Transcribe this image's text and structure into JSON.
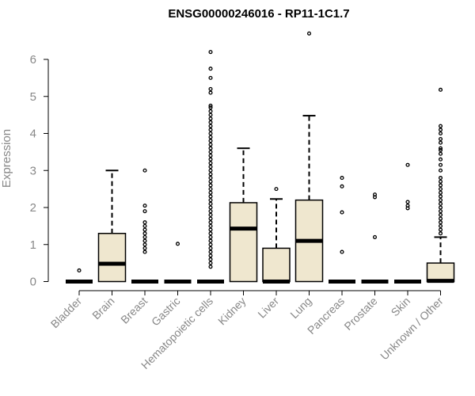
{
  "chart_data": {
    "type": "box",
    "title": "ENSG00000246016 - RP11-1C1.7",
    "xlabel": "",
    "ylabel": "Expression",
    "ylim": [
      0,
      6.5
    ],
    "yticks": [
      0,
      1,
      2,
      3,
      4,
      5,
      6
    ],
    "grid": false,
    "colors": {
      "box_fill": "#efe7cf",
      "stroke": "#000000",
      "axis_text": "#888888"
    },
    "categories": [
      "Bladder",
      "Brain",
      "Breast",
      "Gastric",
      "Hematopoietic cells",
      "Kidney",
      "Liver",
      "Lung",
      "Pancreas",
      "Prostate",
      "Skin",
      "Unknown / Other"
    ],
    "boxes": [
      {
        "name": "Bladder",
        "q1": 0,
        "median": 0,
        "q3": 0,
        "whisker_low": 0,
        "whisker_high": 0,
        "outliers": [
          0.3
        ]
      },
      {
        "name": "Brain",
        "q1": 0,
        "median": 0.48,
        "q3": 1.3,
        "whisker_low": 0,
        "whisker_high": 3.0,
        "outliers": []
      },
      {
        "name": "Breast",
        "q1": 0,
        "median": 0,
        "q3": 0,
        "whisker_low": 0,
        "whisker_high": 0,
        "outliers": [
          0.8,
          0.9,
          1.0,
          1.1,
          1.2,
          1.3,
          1.4,
          1.5,
          1.6,
          1.9,
          2.05,
          3.0
        ]
      },
      {
        "name": "Gastric",
        "q1": 0,
        "median": 0,
        "q3": 0,
        "whisker_low": 0,
        "whisker_high": 0,
        "outliers": [
          1.02
        ]
      },
      {
        "name": "Hematopoietic cells",
        "q1": 0,
        "median": 0,
        "q3": 0,
        "whisker_low": 0,
        "whisker_high": 0,
        "outliers": [
          0.4,
          0.5,
          0.6,
          0.7,
          0.8,
          0.9,
          1.0,
          1.1,
          1.2,
          1.3,
          1.4,
          1.5,
          1.6,
          1.7,
          1.8,
          1.9,
          2.0,
          2.1,
          2.2,
          2.3,
          2.4,
          2.5,
          2.6,
          2.7,
          2.8,
          2.9,
          3.0,
          3.1,
          3.2,
          3.3,
          3.4,
          3.5,
          3.6,
          3.7,
          3.8,
          3.9,
          4.0,
          4.1,
          4.2,
          4.3,
          4.4,
          4.5,
          4.6,
          4.7,
          4.75,
          5.1,
          5.2,
          5.5,
          5.75,
          6.2
        ]
      },
      {
        "name": "Kidney",
        "q1": 0,
        "median": 1.43,
        "q3": 2.13,
        "whisker_low": 0,
        "whisker_high": 3.6,
        "outliers": []
      },
      {
        "name": "Liver",
        "q1": 0,
        "median": 0,
        "q3": 0.9,
        "whisker_low": 0,
        "whisker_high": 2.23,
        "outliers": [
          2.5
        ]
      },
      {
        "name": "Lung",
        "q1": 0,
        "median": 1.1,
        "q3": 2.2,
        "whisker_low": 0,
        "whisker_high": 4.48,
        "outliers": [
          6.7
        ]
      },
      {
        "name": "Pancreas",
        "q1": 0,
        "median": 0,
        "q3": 0,
        "whisker_low": 0,
        "whisker_high": 0,
        "outliers": [
          0.8,
          1.87,
          2.57,
          2.8
        ]
      },
      {
        "name": "Prostate",
        "q1": 0,
        "median": 0,
        "q3": 0,
        "whisker_low": 0,
        "whisker_high": 0,
        "outliers": [
          1.2,
          2.28,
          2.35
        ]
      },
      {
        "name": "Skin",
        "q1": 0,
        "median": 0,
        "q3": 0,
        "whisker_low": 0,
        "whisker_high": 0,
        "outliers": [
          1.98,
          2.05,
          2.15,
          3.15
        ]
      },
      {
        "name": "Unknown / Other",
        "q1": 0,
        "median": 0.02,
        "q3": 0.5,
        "whisker_low": 0,
        "whisker_high": 1.2,
        "outliers": [
          1.3,
          1.4,
          1.5,
          1.6,
          1.7,
          1.8,
          1.9,
          2.0,
          2.1,
          2.2,
          2.3,
          2.4,
          2.5,
          2.6,
          2.7,
          2.8,
          3.0,
          3.15,
          3.3,
          3.45,
          3.55,
          3.6,
          3.75,
          3.85,
          4.0,
          4.1,
          4.2,
          5.18
        ]
      }
    ]
  }
}
